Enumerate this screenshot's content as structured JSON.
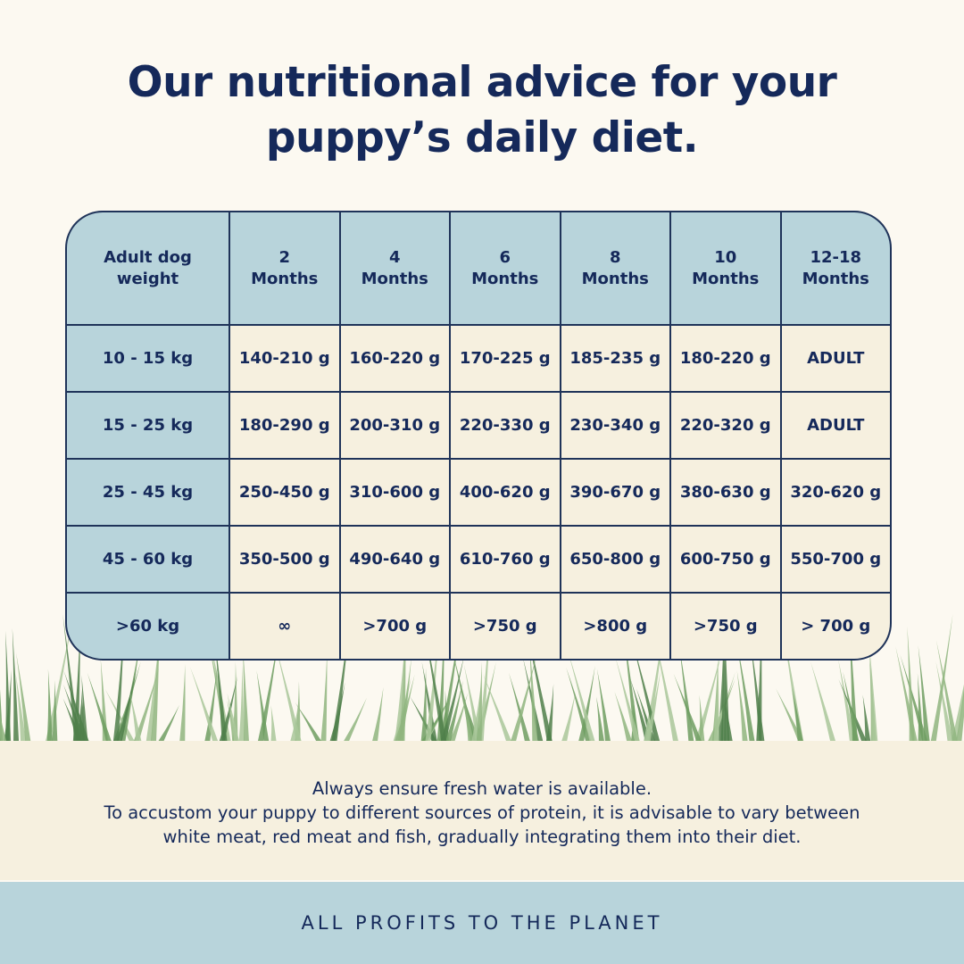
{
  "header": {
    "title": [
      "Our nutritional advice for your",
      "puppy’s daily diet."
    ]
  },
  "table": {
    "columns": [
      "Adult dog\nweight",
      "2\nMonths",
      "4\nMonths",
      "6\nMonths",
      "8\nMonths",
      "10\nMonths",
      "12-18\nMonths"
    ],
    "rows": [
      [
        "10 - 15 kg",
        "140-210 g",
        "160-220 g",
        "170-225 g",
        "185-235 g",
        "180-220 g",
        "ADULT"
      ],
      [
        "15 - 25 kg",
        "180-290 g",
        "200-310 g",
        "220-330 g",
        "230-340 g",
        "220-320 g",
        "ADULT"
      ],
      [
        "25 - 45 kg",
        "250-450 g",
        "310-600 g",
        "400-620 g",
        "390-670 g",
        "380-630 g",
        "320-620 g"
      ],
      [
        "45 - 60 kg",
        "350-500 g",
        "490-640 g",
        "610-760 g",
        "650-800 g",
        "600-750 g",
        "550-700 g"
      ],
      [
        ">60 kg",
        "∞",
        ">700 g",
        ">750 g",
        ">800 g",
        ">750 g",
        "> 700 g"
      ]
    ]
  },
  "notes": [
    "Always ensure fresh water is available.",
    "To accustom your puppy to different sources of protein, it is advisable to vary between",
    "white meat, red meat and fish, gradually integrating them into their diet."
  ],
  "footer": "ALL PROFITS TO THE PLANET"
}
